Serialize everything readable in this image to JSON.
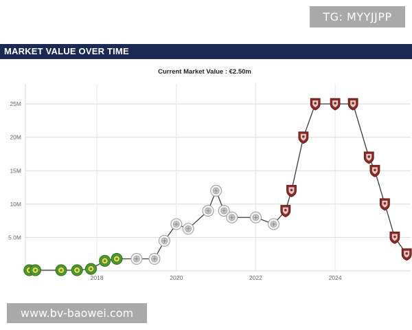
{
  "watermark_top": "TG: MYYJJPP",
  "header": {
    "title": "MARKET VALUE OVER TIME"
  },
  "watermark_bottom": "www.bv-baowei.com",
  "colors": {
    "header_bg": "#1b2a52",
    "badge_bg": "#a9a9a9",
    "line": "#3a3a3a",
    "grid": "#d9d9d9",
    "club_green": "#4a9a2e",
    "club_grey": "#c8c8c8",
    "club_maroon": "#8b2a22"
  },
  "chart_data": {
    "type": "line",
    "title": "Current Market Value : €2.50m",
    "xlabel": "",
    "ylabel": "",
    "xlim": [
      2016.2,
      2025.9
    ],
    "ylim": [
      0,
      28
    ],
    "grid": true,
    "yticks": [
      {
        "value": 5,
        "label": "5.0M"
      },
      {
        "value": 10,
        "label": "10M"
      },
      {
        "value": 15,
        "label": "15M"
      },
      {
        "value": 20,
        "label": "20M"
      },
      {
        "value": 25,
        "label": "25M"
      }
    ],
    "xticks": [
      {
        "value": 2018,
        "label": "2018"
      },
      {
        "value": 2020,
        "label": "2020"
      },
      {
        "value": 2022,
        "label": "2022"
      },
      {
        "value": 2024,
        "label": "2024"
      }
    ],
    "series": [
      {
        "points": [
          {
            "x": 2016.3,
            "y": 0.1,
            "club": "green"
          },
          {
            "x": 2016.45,
            "y": 0.1,
            "club": "green"
          },
          {
            "x": 2017.1,
            "y": 0.1,
            "club": "green"
          },
          {
            "x": 2017.5,
            "y": 0.1,
            "club": "green"
          },
          {
            "x": 2017.85,
            "y": 0.3,
            "club": "green"
          },
          {
            "x": 2018.2,
            "y": 1.5,
            "club": "green"
          },
          {
            "x": 2018.5,
            "y": 1.8,
            "club": "green"
          },
          {
            "x": 2019.0,
            "y": 1.8,
            "club": "grey"
          },
          {
            "x": 2019.45,
            "y": 1.8,
            "club": "grey"
          },
          {
            "x": 2019.7,
            "y": 4.5,
            "club": "grey"
          },
          {
            "x": 2020.0,
            "y": 7.0,
            "club": "grey"
          },
          {
            "x": 2020.3,
            "y": 6.3,
            "club": "grey"
          },
          {
            "x": 2020.8,
            "y": 9.0,
            "club": "grey"
          },
          {
            "x": 2021.0,
            "y": 12.0,
            "club": "grey"
          },
          {
            "x": 2021.2,
            "y": 9.0,
            "club": "grey"
          },
          {
            "x": 2021.4,
            "y": 8.0,
            "club": "grey"
          },
          {
            "x": 2022.0,
            "y": 8.0,
            "club": "grey"
          },
          {
            "x": 2022.45,
            "y": 7.0,
            "club": "grey"
          },
          {
            "x": 2022.75,
            "y": 9.0,
            "club": "maroon"
          },
          {
            "x": 2022.9,
            "y": 12.0,
            "club": "maroon"
          },
          {
            "x": 2023.2,
            "y": 20.0,
            "club": "maroon"
          },
          {
            "x": 2023.5,
            "y": 25.0,
            "club": "maroon"
          },
          {
            "x": 2024.0,
            "y": 25.0,
            "club": "maroon"
          },
          {
            "x": 2024.45,
            "y": 25.0,
            "club": "maroon"
          },
          {
            "x": 2024.85,
            "y": 17.0,
            "club": "maroon"
          },
          {
            "x": 2025.0,
            "y": 15.0,
            "club": "maroon"
          },
          {
            "x": 2025.25,
            "y": 10.0,
            "club": "maroon"
          },
          {
            "x": 2025.5,
            "y": 5.0,
            "club": "maroon"
          },
          {
            "x": 2025.8,
            "y": 2.5,
            "club": "maroon"
          }
        ]
      }
    ]
  }
}
